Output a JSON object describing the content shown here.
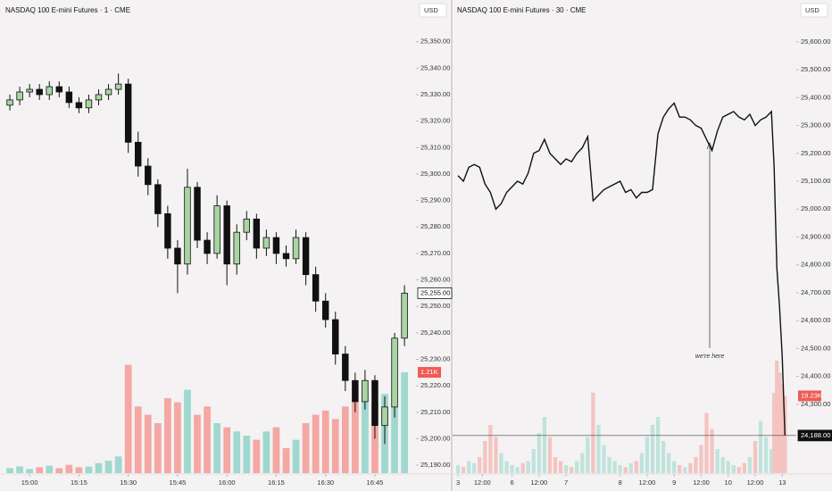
{
  "chart_data": [
    {
      "type": "candlestick",
      "title": "NASDAQ 100 E-mini Futures · 1 · CME",
      "currency": "USD",
      "x": [
        894,
        897,
        900,
        903,
        906,
        909,
        912,
        915,
        918,
        921,
        924,
        927,
        930,
        933,
        936,
        939,
        942,
        945,
        948,
        951,
        954,
        957,
        960,
        963,
        966,
        969,
        972,
        975,
        978,
        981,
        984,
        987,
        990,
        993,
        996,
        999,
        1002,
        1005,
        1008,
        1011,
        1014
      ],
      "open": [
        25326,
        25328,
        25331,
        25332,
        25330,
        25333,
        25331,
        25327,
        25325,
        25328,
        25330,
        25332,
        25334,
        25312,
        25303,
        25296,
        25285,
        25272,
        25266,
        25295,
        25275,
        25270,
        25288,
        25266,
        25278,
        25283,
        25272,
        25276,
        25270,
        25268,
        25276,
        25262,
        25252,
        25245,
        25232,
        25222,
        25214,
        25222,
        25205,
        25212,
        25238
      ],
      "high": [
        25330,
        25333,
        25334,
        25334,
        25335,
        25335,
        25333,
        25329,
        25330,
        25332,
        25334,
        25338,
        25336,
        25316,
        25306,
        25298,
        25288,
        25275,
        25302,
        25297,
        25278,
        25292,
        25290,
        25281,
        25286,
        25285,
        25279,
        25278,
        25273,
        25279,
        25278,
        25265,
        25255,
        25248,
        25235,
        25225,
        25226,
        25224,
        25216,
        25240,
        25258
      ],
      "low": [
        25324,
        25326,
        25329,
        25328,
        25328,
        25329,
        25325,
        25323,
        25323,
        25326,
        25328,
        25330,
        25308,
        25299,
        25292,
        25280,
        25268,
        25255,
        25262,
        25272,
        25266,
        25268,
        25258,
        25262,
        25275,
        25268,
        25269,
        25266,
        25265,
        25266,
        25258,
        25248,
        25242,
        25228,
        25218,
        25210,
        25211,
        25200,
        25198,
        25208,
        25235
      ],
      "close": [
        25328,
        25331,
        25332,
        25330,
        25333,
        25331,
        25327,
        25325,
        25328,
        25330,
        25332,
        25334,
        25312,
        25303,
        25296,
        25285,
        25272,
        25266,
        25295,
        25275,
        25270,
        25288,
        25266,
        25278,
        25283,
        25272,
        25276,
        25270,
        25268,
        25276,
        25262,
        25252,
        25245,
        25232,
        25222,
        25214,
        25222,
        25205,
        25212,
        25238,
        25255
      ],
      "up_color": "#a8d5a2",
      "down_color": "#111111",
      "xlim": [
        891,
        1017.5
      ],
      "xticks": [
        {
          "value": 900,
          "label": "15:00"
        },
        {
          "value": 915,
          "label": "15:15"
        },
        {
          "value": 930,
          "label": "15:30"
        },
        {
          "value": 945,
          "label": "15:45"
        },
        {
          "value": 960,
          "label": "16:00"
        },
        {
          "value": 975,
          "label": "16:15"
        },
        {
          "value": 990,
          "label": "16:30"
        },
        {
          "value": 1005,
          "label": "16:45"
        }
      ],
      "ylim": [
        25187,
        25359
      ],
      "yticks": [
        {
          "value": 25190,
          "label": "25,190.00"
        },
        {
          "value": 25200,
          "label": "25,200.00"
        },
        {
          "value": 25210,
          "label": "25,210.00"
        },
        {
          "value": 25220,
          "label": "25,220.00"
        },
        {
          "value": 25230,
          "label": "25,230.00"
        },
        {
          "value": 25240,
          "label": "25,240.00"
        },
        {
          "value": 25250,
          "label": "25,250.00"
        },
        {
          "value": 25260,
          "label": "25,260.00"
        },
        {
          "value": 25270,
          "label": "25,270.00"
        },
        {
          "value": 25280,
          "label": "25,280.00"
        },
        {
          "value": 25290,
          "label": "25,290.00"
        },
        {
          "value": 25300,
          "label": "25,300.00"
        },
        {
          "value": 25310,
          "label": "25,310.00"
        },
        {
          "value": 25320,
          "label": "25,320.00"
        },
        {
          "value": 25330,
          "label": "25,330.00"
        },
        {
          "value": 25340,
          "label": "25,340.00"
        },
        {
          "value": 25350,
          "label": "25,350.00"
        }
      ],
      "last_price": {
        "value": 25255,
        "label": "25,255.00"
      },
      "volume": {
        "values": [
          60,
          80,
          50,
          70,
          90,
          60,
          100,
          70,
          80,
          120,
          150,
          200,
          1300,
          800,
          700,
          600,
          900,
          850,
          1000,
          700,
          800,
          600,
          550,
          500,
          450,
          400,
          500,
          550,
          300,
          400,
          600,
          700,
          750,
          650,
          800,
          900,
          1000,
          850,
          950,
          800,
          1210
        ],
        "vlim": [
          0,
          1500
        ],
        "up_color": "#9fd8cf",
        "down_color": "#f4a7a3",
        "last": {
          "value": 1210,
          "label": "1.21K"
        }
      }
    },
    {
      "type": "line",
      "title": "NASDAQ 100 E-mini Futures · 30 · CME",
      "currency": "USD",
      "annotation": "we're here",
      "x": [
        0,
        0.1,
        0.2,
        0.3,
        0.4,
        0.5,
        0.6,
        0.7,
        0.8,
        0.9,
        1,
        1.1,
        1.2,
        1.3,
        1.4,
        1.5,
        1.6,
        1.7,
        1.8,
        1.9,
        2,
        2.1,
        2.2,
        2.3,
        2.4,
        2.5,
        2.6,
        2.7,
        2.8,
        2.9,
        3,
        3.1,
        3.2,
        3.3,
        3.4,
        3.5,
        3.6,
        3.7,
        3.8,
        3.9,
        4,
        4.1,
        4.2,
        4.3,
        4.4,
        4.5,
        4.6,
        4.7,
        4.8,
        4.9,
        5,
        5.1,
        5.2,
        5.3,
        5.4,
        5.5,
        5.6,
        5.7,
        5.8,
        5.85,
        5.9,
        5.95,
        6,
        6.05
      ],
      "close": [
        25120,
        25100,
        25150,
        25160,
        25150,
        25090,
        25060,
        25000,
        25020,
        25060,
        25080,
        25100,
        25090,
        25130,
        25200,
        25210,
        25250,
        25200,
        25180,
        25160,
        25180,
        25170,
        25200,
        25220,
        25260,
        25030,
        25050,
        25070,
        25080,
        25090,
        25100,
        25060,
        25070,
        25040,
        25060,
        25060,
        25070,
        25270,
        25330,
        25360,
        25380,
        25330,
        25330,
        25320,
        25300,
        25290,
        25250,
        25210,
        25280,
        25330,
        25340,
        25350,
        25330,
        25320,
        25340,
        25300,
        25320,
        25330,
        25350,
        25150,
        24790,
        24650,
        24470,
        24188
      ],
      "color": "#111111",
      "xlim": [
        -0.1,
        6.26
      ],
      "xticks": [
        {
          "value": 0,
          "label": "3"
        },
        {
          "value": 0.45,
          "label": "12:00"
        },
        {
          "value": 1,
          "label": "6"
        },
        {
          "value": 1.5,
          "label": "12:00"
        },
        {
          "value": 2,
          "label": "7"
        },
        {
          "value": 3,
          "label": "8"
        },
        {
          "value": 3.5,
          "label": "12:00"
        },
        {
          "value": 4,
          "label": "9"
        },
        {
          "value": 4.5,
          "label": "12:00"
        },
        {
          "value": 5,
          "label": "10"
        },
        {
          "value": 5.5,
          "label": "12:00"
        },
        {
          "value": 6,
          "label": "13"
        }
      ],
      "ylim": [
        24053,
        25686
      ],
      "yticks": [
        {
          "value": 24300,
          "label": "24,300.00"
        },
        {
          "value": 24400,
          "label": "24,400.00"
        },
        {
          "value": 24500,
          "label": "24,500.00"
        },
        {
          "value": 24600,
          "label": "24,600.00"
        },
        {
          "value": 24700,
          "label": "24,700.00"
        },
        {
          "value": 24800,
          "label": "24,800.00"
        },
        {
          "value": 24900,
          "label": "24,900.00"
        },
        {
          "value": 25000,
          "label": "25,000.00"
        },
        {
          "value": 25100,
          "label": "25,100.00"
        },
        {
          "value": 25200,
          "label": "25,200.00"
        },
        {
          "value": 25300,
          "label": "25,300.00"
        },
        {
          "value": 25400,
          "label": "25,400.00"
        },
        {
          "value": 25500,
          "label": "25,500.00"
        },
        {
          "value": 25600,
          "label": "25,600.00"
        }
      ],
      "last_price": {
        "value": 24188,
        "label": "24,188.00"
      },
      "volume": {
        "values": [
          2000,
          1500,
          3000,
          2500,
          4000,
          8000,
          12000,
          9000,
          5000,
          3000,
          2000,
          1500,
          2500,
          3000,
          6000,
          10000,
          14000,
          9000,
          4000,
          3000,
          2000,
          1500,
          3000,
          5000,
          9000,
          20000,
          12000,
          7000,
          4000,
          3000,
          2000,
          1500,
          2500,
          3000,
          5000,
          9000,
          12000,
          14000,
          8000,
          5000,
          3000,
          2000,
          1500,
          2500,
          4000,
          7000,
          15000,
          11000,
          6000,
          4000,
          3000,
          2000,
          1500,
          2500,
          4000,
          8000,
          13000,
          9000,
          6000,
          20000,
          28000,
          25000,
          22000,
          19230
        ],
        "vlim": [
          0,
          30000
        ],
        "up_color": "#bfe3dc",
        "down_color": "#f5c3c0",
        "last": {
          "value": 19230,
          "label": "19.23K"
        }
      }
    }
  ]
}
